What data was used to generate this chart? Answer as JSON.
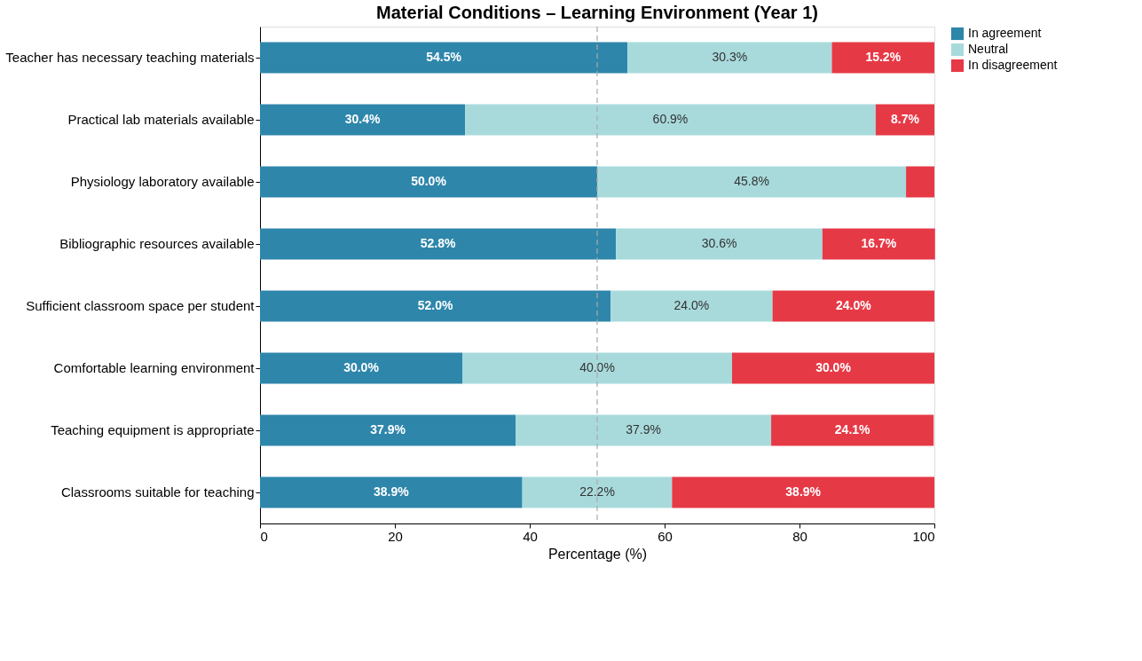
{
  "chart_data": {
    "type": "bar",
    "orientation": "horizontal",
    "stacked": true,
    "title": "Material Conditions – Learning Environment (Year 1)",
    "xlabel": "Percentage (%)",
    "categories": [
      "Teacher has necessary teaching materials",
      "Practical lab materials available",
      "Physiology laboratory available",
      "Bibliographic resources available",
      "Sufficient classroom space per student",
      "Comfortable learning environment",
      "Teaching equipment is appropriate",
      "Classrooms suitable for teaching"
    ],
    "series": [
      {
        "name": "In agreement",
        "color": "#2e86ab",
        "values": [
          54.5,
          30.4,
          50.0,
          52.8,
          52.0,
          30.0,
          37.9,
          38.9
        ],
        "value_labels": [
          "54.5%",
          "30.4%",
          "50.0%",
          "52.8%",
          "52.0%",
          "30.0%",
          "37.9%",
          "38.9%"
        ]
      },
      {
        "name": "Neutral",
        "color": "#a8dadc",
        "values": [
          30.3,
          60.9,
          45.8,
          30.6,
          24.0,
          40.0,
          37.9,
          22.2
        ],
        "value_labels": [
          "30.3%",
          "60.9%",
          "45.8%",
          "30.6%",
          "24.0%",
          "40.0%",
          "37.9%",
          "22.2%"
        ]
      },
      {
        "name": "In disagreement",
        "color": "#e63946",
        "values": [
          15.2,
          8.7,
          4.2,
          16.7,
          24.0,
          30.0,
          24.1,
          38.9
        ],
        "value_labels": [
          "15.2%",
          "8.7%",
          null,
          "16.7%",
          "24.0%",
          "30.0%",
          "24.1%",
          "38.9%"
        ]
      }
    ],
    "xlim": [
      0,
      100
    ],
    "xticks": [
      0,
      20,
      40,
      60,
      80,
      100
    ],
    "grid": false,
    "legend": "right",
    "ref_lines": [
      {
        "axis": "x",
        "value": 50,
        "color": "#aaaaaa",
        "line_style": "dashed"
      }
    ]
  }
}
